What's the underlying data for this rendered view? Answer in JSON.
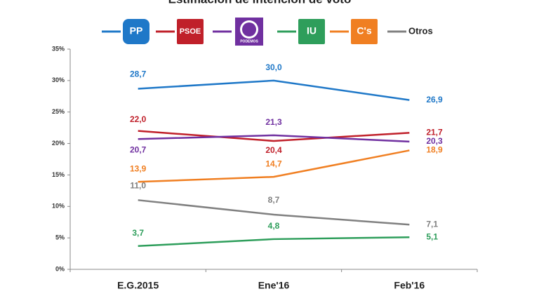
{
  "chart_data": {
    "type": "line",
    "title": "Estimación de intención de voto",
    "categories": [
      "E.G.2015",
      "Ene'16",
      "Feb'16"
    ],
    "series": [
      {
        "name": "PP",
        "color": "#1f78c8",
        "values": [
          28.7,
          30.0,
          26.9
        ],
        "value_labels": [
          "28,7",
          "30,0",
          "26,9"
        ]
      },
      {
        "name": "PSOE",
        "color": "#c0202a",
        "values": [
          22.0,
          20.4,
          21.7
        ],
        "value_labels": [
          "22,0",
          "20,4",
          "21,7"
        ]
      },
      {
        "name": "PODEMOS",
        "color": "#7030a0",
        "values": [
          20.7,
          21.3,
          20.3
        ],
        "value_labels": [
          "20,7",
          "21,3",
          "20,3"
        ]
      },
      {
        "name": "IU",
        "color": "#2e9e5b",
        "values": [
          3.7,
          4.8,
          5.1
        ],
        "value_labels": [
          "3,7",
          "4,8",
          "5,1"
        ]
      },
      {
        "name": "C's",
        "color": "#f07f22",
        "values": [
          13.9,
          14.7,
          18.9
        ],
        "value_labels": [
          "13,9",
          "14,7",
          "18,9"
        ]
      },
      {
        "name": "Otros",
        "color": "#808080",
        "values": [
          11.0,
          8.7,
          7.1
        ],
        "value_labels": [
          "11,0",
          "8,7",
          "7,1"
        ]
      }
    ],
    "ylim": [
      0,
      35
    ],
    "yticks": [
      {
        "value": 0,
        "label": "0%"
      },
      {
        "value": 5,
        "label": "5%"
      },
      {
        "value": 10,
        "label": "10%"
      },
      {
        "value": 15,
        "label": "15%"
      },
      {
        "value": 20,
        "label": "20%"
      },
      {
        "value": 25,
        "label": "25%"
      },
      {
        "value": 30,
        "label": "30%"
      },
      {
        "value": 35,
        "label": "35%"
      }
    ]
  }
}
